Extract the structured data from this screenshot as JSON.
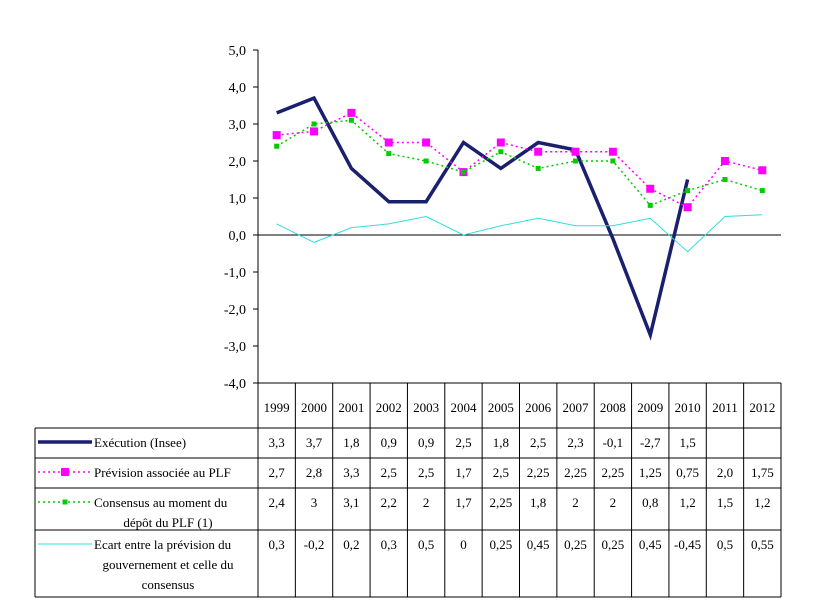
{
  "chart_data": {
    "type": "line",
    "title": "",
    "xlabel": "",
    "ylabel": "",
    "ylim": [
      -4.0,
      5.0
    ],
    "y_ticks": [
      "5,0",
      "4,0",
      "3,0",
      "2,0",
      "1,0",
      "0,0",
      "-1,0",
      "-2,0",
      "-3,0",
      "-4,0"
    ],
    "categories": [
      "1999",
      "2000",
      "2001",
      "2002",
      "2003",
      "2004",
      "2005",
      "2006",
      "2007",
      "2008",
      "2009",
      "2010",
      "2011",
      "2012"
    ],
    "legend_position": "data-table",
    "series": [
      {
        "name": "Exécution (Insee)",
        "legend_lines": [
          "Exécution (Insee)"
        ],
        "color": "#1a1f6e",
        "style": "solid-thick",
        "values": [
          3.3,
          3.7,
          1.8,
          0.9,
          0.9,
          2.5,
          1.8,
          2.5,
          2.3,
          -0.1,
          -2.7,
          1.5,
          null,
          null
        ],
        "labels": [
          "3,3",
          "3,7",
          "1,8",
          "0,9",
          "0,9",
          "2,5",
          "1,8",
          "2,5",
          "2,3",
          "-0,1",
          "-2,7",
          "1,5",
          "",
          ""
        ]
      },
      {
        "name": "Prévision associée au PLF",
        "legend_lines": [
          "Prévision associée au PLF"
        ],
        "color": "#ff00ff",
        "style": "dotted-square",
        "values": [
          2.7,
          2.8,
          3.3,
          2.5,
          2.5,
          1.7,
          2.5,
          2.25,
          2.25,
          2.25,
          1.25,
          0.75,
          2.0,
          1.75
        ],
        "labels": [
          "2,7",
          "2,8",
          "3,3",
          "2,5",
          "2,5",
          "1,7",
          "2,5",
          "2,25",
          "2,25",
          "2,25",
          "1,25",
          "0,75",
          "2,0",
          "1,75"
        ]
      },
      {
        "name": "Consensus au moment du dépôt du PLF (1)",
        "legend_lines": [
          "Consensus au moment du",
          "dépôt du PLF (1)"
        ],
        "color": "#00cc00",
        "style": "dotted-small-square",
        "values": [
          2.4,
          3.0,
          3.1,
          2.2,
          2.0,
          1.7,
          2.25,
          1.8,
          2.0,
          2.0,
          0.8,
          1.2,
          1.5,
          1.2
        ],
        "labels": [
          "2,4",
          "3",
          "3,1",
          "2,2",
          "2",
          "1,7",
          "2,25",
          "1,8",
          "2",
          "2",
          "0,8",
          "1,2",
          "1,5",
          "1,2"
        ]
      },
      {
        "name": "Ecart entre la prévision du gouvernement et celle du consensus",
        "legend_lines": [
          "Ecart entre la prévision du",
          "gouvernement et celle du",
          "consensus"
        ],
        "color": "#33dddd",
        "style": "solid-thin",
        "values": [
          0.3,
          -0.2,
          0.2,
          0.3,
          0.5,
          0.0,
          0.25,
          0.45,
          0.25,
          0.25,
          0.45,
          -0.45,
          0.5,
          0.55
        ],
        "labels": [
          "0,3",
          "-0,2",
          "0,2",
          "0,3",
          "0,5",
          "0",
          "0,25",
          "0,45",
          "0,25",
          "0,25",
          "0,45",
          "-0,45",
          "0,5",
          "0,55"
        ]
      }
    ]
  }
}
